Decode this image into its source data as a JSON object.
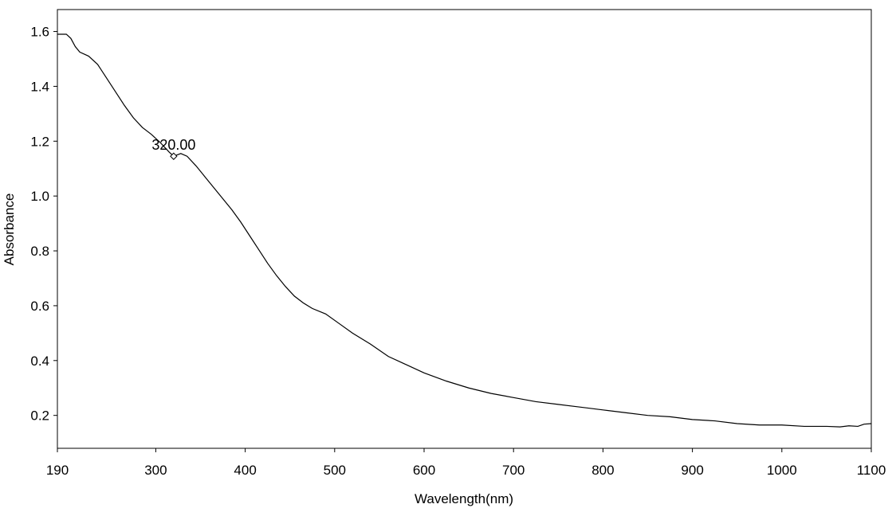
{
  "chart_data": {
    "type": "line",
    "title": "",
    "xlabel": "Wavelength(nm)",
    "ylabel": "Absorbance",
    "xlim": [
      190,
      1100
    ],
    "ylim": [
      0.08,
      1.68
    ],
    "x_ticks": [
      "190",
      "300",
      "400",
      "500",
      "600",
      "700",
      "800",
      "900",
      "1000",
      "1100"
    ],
    "y_ticks": [
      "0.2",
      "0.4",
      "0.6",
      "0.8",
      "1.0",
      "1.2",
      "1.4",
      "1.6"
    ],
    "grid": false,
    "legend": "none",
    "annotations": [
      {
        "text": "320.00",
        "x": 320,
        "y": 1.145
      }
    ],
    "series": [
      {
        "values": [
          [
            190,
            1.59
          ],
          [
            200,
            1.59
          ],
          [
            205,
            1.575
          ],
          [
            210,
            1.545
          ],
          [
            215,
            1.525
          ],
          [
            225,
            1.51
          ],
          [
            235,
            1.48
          ],
          [
            245,
            1.43
          ],
          [
            255,
            1.38
          ],
          [
            265,
            1.33
          ],
          [
            275,
            1.285
          ],
          [
            285,
            1.25
          ],
          [
            295,
            1.225
          ],
          [
            305,
            1.195
          ],
          [
            315,
            1.16
          ],
          [
            320,
            1.145
          ],
          [
            328,
            1.155
          ],
          [
            335,
            1.145
          ],
          [
            345,
            1.11
          ],
          [
            355,
            1.07
          ],
          [
            365,
            1.03
          ],
          [
            375,
            0.99
          ],
          [
            385,
            0.95
          ],
          [
            395,
            0.905
          ],
          [
            405,
            0.855
          ],
          [
            415,
            0.805
          ],
          [
            425,
            0.755
          ],
          [
            435,
            0.71
          ],
          [
            445,
            0.67
          ],
          [
            455,
            0.635
          ],
          [
            465,
            0.61
          ],
          [
            475,
            0.59
          ],
          [
            490,
            0.57
          ],
          [
            505,
            0.535
          ],
          [
            520,
            0.5
          ],
          [
            540,
            0.46
          ],
          [
            560,
            0.415
          ],
          [
            580,
            0.385
          ],
          [
            600,
            0.355
          ],
          [
            625,
            0.325
          ],
          [
            650,
            0.3
          ],
          [
            675,
            0.28
          ],
          [
            700,
            0.265
          ],
          [
            725,
            0.25
          ],
          [
            750,
            0.24
          ],
          [
            775,
            0.23
          ],
          [
            800,
            0.22
          ],
          [
            825,
            0.21
          ],
          [
            850,
            0.2
          ],
          [
            875,
            0.195
          ],
          [
            900,
            0.185
          ],
          [
            925,
            0.18
          ],
          [
            950,
            0.17
          ],
          [
            975,
            0.165
          ],
          [
            1000,
            0.165
          ],
          [
            1025,
            0.16
          ],
          [
            1050,
            0.16
          ],
          [
            1065,
            0.158
          ],
          [
            1075,
            0.162
          ],
          [
            1085,
            0.16
          ],
          [
            1092,
            0.168
          ],
          [
            1100,
            0.17
          ]
        ]
      }
    ]
  }
}
